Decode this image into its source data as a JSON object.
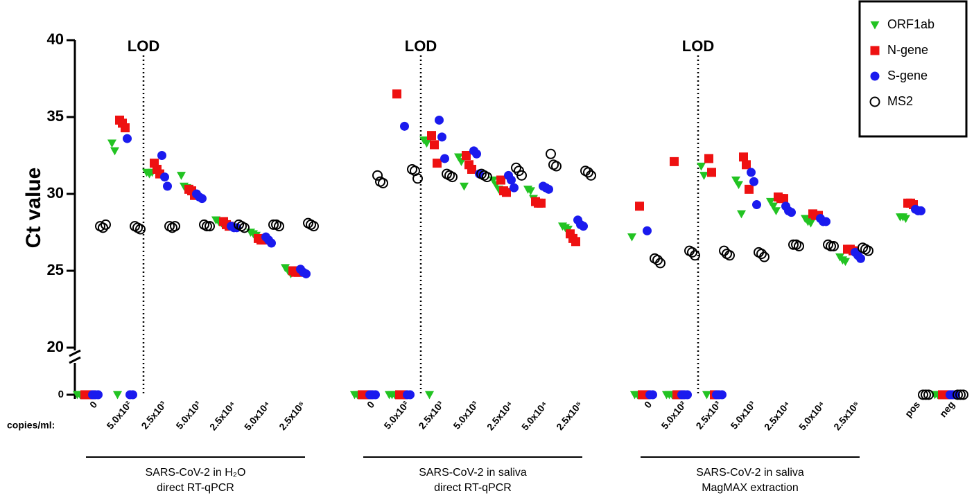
{
  "chart_data": {
    "type": "scatter",
    "y_label": "Ct value",
    "x_label": "copies/ml:",
    "ylim": [
      0,
      40
    ],
    "axis_break": [
      0,
      20
    ],
    "yticks": [
      0,
      20,
      25,
      30,
      35,
      40
    ],
    "legend": "top-right",
    "groups": [
      {
        "lines": [
          "SARS-CoV-2 in H₂O",
          "direct RT-qPCR"
        ],
        "lod": "LOD",
        "categories": [
          "0",
          "5.0x10²",
          "2.5x10³",
          "5.0x10³",
          "2.5x10⁴",
          "5.0x10⁴",
          "2.5x10⁵"
        ]
      },
      {
        "lines": [
          "SARS-CoV-2 in saliva",
          "direct RT-qPCR"
        ],
        "lod": "LOD",
        "categories": [
          "0",
          "5.0x10²",
          "2.5x10³",
          "5.0x10³",
          "2.5x10⁴",
          "5.0x10⁴",
          "2.5x10⁵"
        ]
      },
      {
        "lines": [
          "SARS-CoV-2 in saliva",
          "MagMAX extraction"
        ],
        "lod": "LOD",
        "categories": [
          "0",
          "5.0x10²",
          "2.5x10³",
          "5.0x10³",
          "2.5x10⁴",
          "5.0x10⁴",
          "2.5x10⁵"
        ]
      },
      {
        "categories": [
          "pos",
          "neg"
        ]
      }
    ],
    "series": [
      {
        "name": "ORF1ab",
        "color": "#22c322",
        "marker": "triangle-down",
        "values": [
          [
            0,
            0,
            0
          ],
          [
            33.3,
            32.8,
            0
          ],
          [
            31.4,
            31.3,
            31.4
          ],
          [
            31.2,
            30.5,
            30.4
          ],
          [
            28.3,
            28.2,
            28.1
          ],
          [
            27.5,
            27.4,
            27.3
          ],
          [
            25.2,
            25.0,
            24.8
          ],
          [
            0,
            0,
            0
          ],
          [
            0,
            0,
            0
          ],
          [
            33.5,
            33.3,
            0
          ],
          [
            32.4,
            32.1,
            30.5
          ],
          [
            30.9,
            30.6,
            30.3
          ],
          [
            30.3,
            30.2,
            29.7
          ],
          [
            27.9,
            27.8,
            27.7
          ],
          [
            27.2,
            0,
            0
          ],
          [
            0,
            0,
            0
          ],
          [
            31.8,
            31.2,
            0
          ],
          [
            30.9,
            30.6,
            28.7
          ],
          [
            29.5,
            29.2,
            28.9
          ],
          [
            28.4,
            28.2,
            28.1
          ],
          [
            25.9,
            25.7,
            25.6
          ],
          [
            28.5,
            28.5,
            28.4
          ],
          [
            0,
            0,
            0
          ]
        ]
      },
      {
        "name": "N-gene",
        "color": "#ee1111",
        "marker": "square",
        "values": [
          [
            0,
            0,
            0
          ],
          [
            34.8,
            34.6,
            34.3
          ],
          [
            32.0,
            31.6,
            31.3
          ],
          [
            30.3,
            30.2,
            29.9
          ],
          [
            28.2,
            28.0,
            27.9
          ],
          [
            27.1,
            27.0,
            27.0
          ],
          [
            25.0,
            24.9,
            24.9
          ],
          [
            0,
            0,
            0
          ],
          [
            36.5,
            0,
            0
          ],
          [
            33.8,
            33.2,
            32.0
          ],
          [
            32.5,
            31.9,
            31.6
          ],
          [
            30.9,
            30.2,
            30.1
          ],
          [
            29.5,
            29.4,
            29.4
          ],
          [
            27.4,
            27.1,
            26.9
          ],
          [
            29.2,
            0,
            0
          ],
          [
            32.1,
            0,
            0
          ],
          [
            32.3,
            31.4,
            0
          ],
          [
            32.4,
            31.9,
            30.3
          ],
          [
            29.8,
            29.7,
            29.7
          ],
          [
            28.7,
            28.6,
            28.6
          ],
          [
            26.4,
            26.4,
            26.3
          ],
          [
            29.4,
            29.4,
            29.3
          ],
          [
            0,
            0,
            0
          ]
        ]
      },
      {
        "name": "S-gene",
        "color": "#1a1aee",
        "marker": "circle",
        "values": [
          [
            0,
            0,
            0
          ],
          [
            33.6,
            0,
            0
          ],
          [
            32.5,
            31.1,
            30.5
          ],
          [
            30.0,
            29.8,
            29.7
          ],
          [
            27.9,
            27.8,
            27.8
          ],
          [
            27.2,
            27.0,
            26.8
          ],
          [
            25.1,
            24.9,
            24.8
          ],
          [
            0,
            0,
            0
          ],
          [
            34.4,
            0,
            0
          ],
          [
            34.8,
            33.7,
            32.3
          ],
          [
            32.8,
            32.6,
            31.3
          ],
          [
            31.2,
            30.9,
            30.4
          ],
          [
            30.5,
            30.4,
            30.3
          ],
          [
            28.3,
            28.0,
            27.9
          ],
          [
            27.6,
            0,
            0
          ],
          [
            0,
            0,
            0
          ],
          [
            0,
            0,
            0
          ],
          [
            31.4,
            30.8,
            29.3
          ],
          [
            29.2,
            28.9,
            28.8
          ],
          [
            28.4,
            28.2,
            28.2
          ],
          [
            26.2,
            26.0,
            25.8
          ],
          [
            29.0,
            28.9,
            28.9
          ],
          [
            0,
            0,
            0
          ]
        ]
      },
      {
        "name": "MS2",
        "color": "#000000",
        "marker": "open-circle",
        "values": [
          [
            27.9,
            27.8,
            28.0
          ],
          [
            27.9,
            27.8,
            27.7
          ],
          [
            27.9,
            27.8,
            27.9
          ],
          [
            28.0,
            27.9,
            27.9
          ],
          [
            28.0,
            27.9,
            27.8
          ],
          [
            28.0,
            28.0,
            27.9
          ],
          [
            28.1,
            28.0,
            27.9
          ],
          [
            31.2,
            30.8,
            30.7
          ],
          [
            31.6,
            31.5,
            31.0
          ],
          [
            31.3,
            31.2,
            31.1
          ],
          [
            31.3,
            31.2,
            31.1
          ],
          [
            31.7,
            31.5,
            31.2
          ],
          [
            32.6,
            31.9,
            31.8
          ],
          [
            31.5,
            31.4,
            31.2
          ],
          [
            25.8,
            25.7,
            25.5
          ],
          [
            26.3,
            26.2,
            26.0
          ],
          [
            26.3,
            26.1,
            26.0
          ],
          [
            26.2,
            26.1,
            25.9
          ],
          [
            26.7,
            26.7,
            26.6
          ],
          [
            26.7,
            26.6,
            26.6
          ],
          [
            26.5,
            26.4,
            26.3
          ],
          [
            0,
            0,
            0
          ],
          [
            0,
            0,
            0
          ]
        ]
      }
    ]
  }
}
